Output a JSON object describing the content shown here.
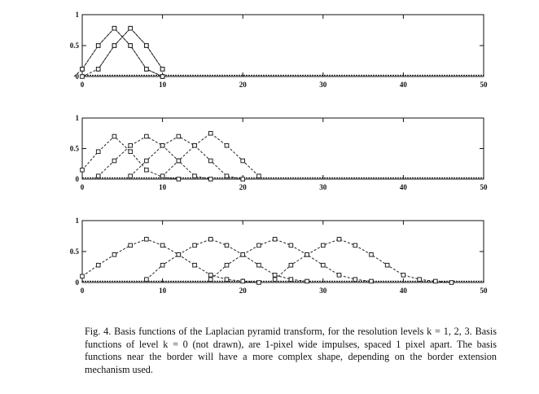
{
  "figure": {
    "panels": [
      {
        "level": 1
      },
      {
        "level": 2
      },
      {
        "level": 3
      }
    ]
  },
  "chart_data": [
    {
      "type": "line",
      "title": "",
      "xlabel": "",
      "ylabel": "",
      "xlim": [
        0,
        50
      ],
      "ylim": [
        0,
        1
      ],
      "x_ticks": [
        "0",
        "10",
        "20",
        "30",
        "40",
        "50"
      ],
      "y_ticks": [
        "0",
        "0.5",
        "1"
      ],
      "grid": false,
      "series": [
        {
          "x": [
            -2,
            0,
            2,
            4,
            6,
            8,
            10
          ],
          "y": [
            0,
            0.12,
            0.5,
            0.78,
            0.5,
            0.12,
            0
          ]
        },
        {
          "x": [
            0,
            2,
            4,
            6,
            8,
            10
          ],
          "y": [
            0.12,
            0.5,
            0.78,
            0.5,
            0.12,
            0
          ]
        },
        {
          "x": [
            2,
            4,
            6,
            8,
            10
          ],
          "y": [
            0.12,
            0.5,
            0.78,
            0.5,
            0.12
          ]
        },
        {
          "x": [
            0,
            2,
            4,
            6,
            8,
            10
          ],
          "y": [
            0,
            0.12,
            0.5,
            0.78,
            0.5,
            0.12
          ]
        }
      ]
    },
    {
      "type": "line",
      "title": "",
      "xlabel": "",
      "ylabel": "",
      "xlim": [
        0,
        50
      ],
      "ylim": [
        0,
        1
      ],
      "x_ticks": [
        "0",
        "10",
        "20",
        "30",
        "40",
        "50"
      ],
      "y_ticks": [
        "0",
        "0.5",
        "1"
      ],
      "grid": false,
      "series": [
        {
          "x": [
            0,
            2,
            4,
            6,
            8,
            10,
            12
          ],
          "y": [
            0.15,
            0.45,
            0.7,
            0.45,
            0.15,
            0.03,
            0
          ]
        },
        {
          "x": [
            2,
            4,
            6,
            8,
            10,
            12,
            14,
            16
          ],
          "y": [
            0.05,
            0.3,
            0.55,
            0.7,
            0.55,
            0.3,
            0.05,
            0
          ]
        },
        {
          "x": [
            6,
            8,
            10,
            12,
            14,
            16,
            18,
            20
          ],
          "y": [
            0.05,
            0.3,
            0.55,
            0.7,
            0.55,
            0.3,
            0.05,
            0
          ]
        },
        {
          "x": [
            10,
            12,
            14,
            16,
            18,
            20,
            22
          ],
          "y": [
            0.05,
            0.3,
            0.55,
            0.75,
            0.55,
            0.3,
            0.05
          ]
        }
      ]
    },
    {
      "type": "line",
      "title": "",
      "xlabel": "",
      "ylabel": "",
      "xlim": [
        0,
        50
      ],
      "ylim": [
        0,
        1
      ],
      "x_ticks": [
        "0",
        "10",
        "20",
        "30",
        "40",
        "50"
      ],
      "y_ticks": [
        "0",
        "0.5",
        "1"
      ],
      "grid": false,
      "series": [
        {
          "x": [
            0,
            2,
            4,
            6,
            8,
            10,
            12,
            14,
            16,
            18,
            20,
            22
          ],
          "y": [
            0.1,
            0.28,
            0.45,
            0.6,
            0.7,
            0.6,
            0.45,
            0.28,
            0.12,
            0.05,
            0.02,
            0
          ]
        },
        {
          "x": [
            8,
            10,
            12,
            14,
            16,
            18,
            20,
            22,
            24,
            26,
            28
          ],
          "y": [
            0.05,
            0.28,
            0.45,
            0.6,
            0.7,
            0.6,
            0.45,
            0.28,
            0.12,
            0.05,
            0.02
          ]
        },
        {
          "x": [
            16,
            18,
            20,
            22,
            24,
            26,
            28,
            30,
            32,
            34,
            36
          ],
          "y": [
            0.05,
            0.28,
            0.45,
            0.6,
            0.7,
            0.6,
            0.45,
            0.28,
            0.12,
            0.05,
            0.02
          ]
        },
        {
          "x": [
            24,
            26,
            28,
            30,
            32,
            34,
            36,
            38,
            40,
            42,
            44,
            46
          ],
          "y": [
            0.05,
            0.28,
            0.45,
            0.6,
            0.7,
            0.6,
            0.45,
            0.28,
            0.12,
            0.05,
            0.02,
            0
          ]
        }
      ]
    }
  ],
  "caption": {
    "text": "Fig. 4.  Basis functions of the Laplacian pyramid transform, for the resolution levels k = 1, 2, 3. Basis functions of level k = 0 (not drawn), are 1-pixel wide impulses, spaced 1 pixel  apart.  The basis functions near the border will have a more complex  shape, depending on the border extension mechanism used."
  }
}
